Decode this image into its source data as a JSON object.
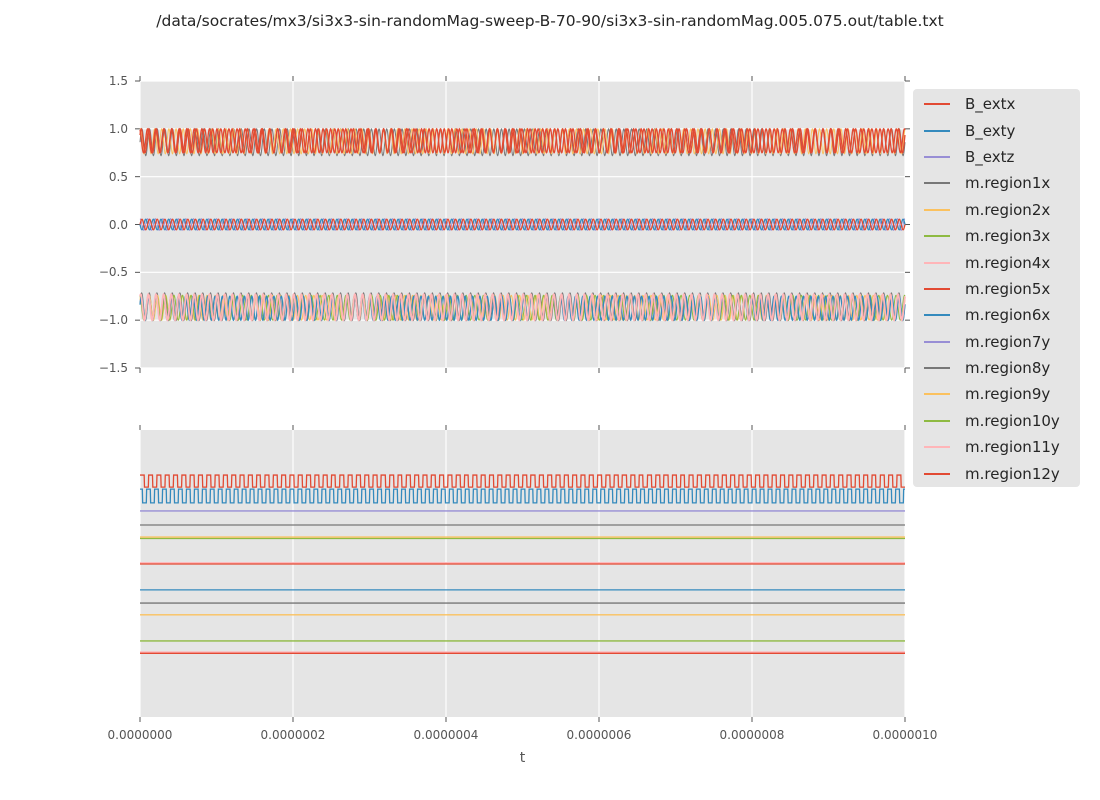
{
  "title": "/data/socrates/mx3/si3x3-sin-randomMag-sweep-B-70-90/si3x3-sin-randomMag.005.075.out/table.txt",
  "xlabel": "t",
  "style": {
    "figure_background": "#ffffff",
    "axes_background": "#E5E5E5",
    "grid_color": "#ffffff",
    "tick_color": "#555555",
    "text_color": "#262626",
    "palette": {
      "red": "#E24A33",
      "blue": "#348ABD",
      "purple": "#988ED5",
      "gray": "#777777",
      "orange": "#FBC15E",
      "green": "#8EBA42",
      "pink": "#FFB5B8"
    }
  },
  "legend": {
    "entries": [
      {
        "label": "B_extx",
        "color": "#E24A33"
      },
      {
        "label": "B_exty",
        "color": "#348ABD"
      },
      {
        "label": "B_extz",
        "color": "#988ED5"
      },
      {
        "label": "m.region1x",
        "color": "#777777"
      },
      {
        "label": "m.region2x",
        "color": "#FBC15E"
      },
      {
        "label": "m.region3x",
        "color": "#8EBA42"
      },
      {
        "label": "m.region4x",
        "color": "#FFB5B8"
      },
      {
        "label": "m.region5x",
        "color": "#E24A33"
      },
      {
        "label": "m.region6x",
        "color": "#348ABD"
      },
      {
        "label": "m.region7y",
        "color": "#988ED5"
      },
      {
        "label": "m.region8y",
        "color": "#777777"
      },
      {
        "label": "m.region9y",
        "color": "#FBC15E"
      },
      {
        "label": "m.region10y",
        "color": "#8EBA42"
      },
      {
        "label": "m.region11y",
        "color": "#FFB5B8"
      },
      {
        "label": "m.region12y",
        "color": "#E24A33"
      }
    ]
  },
  "chart_data": [
    {
      "id": "top",
      "type": "line",
      "xlim": [
        0,
        1e-06
      ],
      "ylim": [
        -1.5,
        1.5
      ],
      "grid": true,
      "xticks": [
        {
          "value": 0
        },
        {
          "value": 2e-07
        },
        {
          "value": 4e-07
        },
        {
          "value": 6e-07
        },
        {
          "value": 8e-07
        },
        {
          "value": 1e-06
        }
      ],
      "yticks": [
        {
          "value": 1.5,
          "label": "1.5"
        },
        {
          "value": 1.0,
          "label": "1.0"
        },
        {
          "value": 0.5,
          "label": "0.5"
        },
        {
          "value": 0.0,
          "label": "0.0"
        },
        {
          "value": -0.5,
          "label": "−0.5"
        },
        {
          "value": -1.0,
          "label": "−1.0"
        },
        {
          "value": -1.5,
          "label": "−1.5"
        }
      ],
      "series": [
        {
          "name": "upper-band-gray-underlay",
          "color": "#777777",
          "wave": "sine",
          "center": 0.86,
          "amplitude": 0.14,
          "cycles": 100,
          "phase": 0,
          "linewidth": 1
        },
        {
          "name": "upper-band-orange-texture",
          "color": "#FBC15E",
          "wave": "sine",
          "center": 0.87,
          "amplitude": 0.13,
          "cycles": 107,
          "phase": 1.3,
          "linewidth": 1
        },
        {
          "name": "upper-band-red-a",
          "color": "#E24A33",
          "wave": "sine",
          "center": 0.875,
          "amplitude": 0.125,
          "cycles": 94,
          "phase": 2.0,
          "linewidth": 1.3
        },
        {
          "name": "upper-band-red-b",
          "color": "#E24A33",
          "wave": "sine",
          "center": 0.875,
          "amplitude": 0.125,
          "cycles": 101,
          "phase": 0.5,
          "linewidth": 1.3
        },
        {
          "name": "mid-band-purple-underlay",
          "color": "#988ED5",
          "wave": "sine",
          "center": 0,
          "amplitude": 0.06,
          "cycles": 100,
          "phase": 1.6,
          "linewidth": 1
        },
        {
          "name": "mid-band-blue",
          "color": "#348ABD",
          "wave": "sine",
          "center": 0,
          "amplitude": 0.055,
          "cycles": 100,
          "phase": 3.14,
          "linewidth": 1.3
        },
        {
          "name": "mid-band-red",
          "color": "#E24A33",
          "wave": "sine",
          "center": 0,
          "amplitude": 0.055,
          "cycles": 100,
          "phase": 0,
          "linewidth": 1.3
        },
        {
          "name": "lower-band-gray-underlay",
          "color": "#777777",
          "wave": "sine",
          "center": -0.86,
          "amplitude": 0.145,
          "cycles": 100,
          "phase": 0.2,
          "linewidth": 1
        },
        {
          "name": "lower-band-orange-texture",
          "color": "#FBC15E",
          "wave": "sine",
          "center": -0.87,
          "amplitude": 0.13,
          "cycles": 93,
          "phase": 0.7,
          "linewidth": 1
        },
        {
          "name": "lower-band-green-texture",
          "color": "#8EBA42",
          "wave": "sine",
          "center": -0.87,
          "amplitude": 0.13,
          "cycles": 89,
          "phase": 1.9,
          "linewidth": 1
        },
        {
          "name": "lower-band-blue",
          "color": "#348ABD",
          "wave": "sine",
          "center": -0.875,
          "amplitude": 0.125,
          "cycles": 104,
          "phase": 0.3,
          "linewidth": 1.3
        },
        {
          "name": "lower-band-pink-main",
          "color": "#FFB5B8",
          "wave": "sine",
          "center": -0.865,
          "amplitude": 0.135,
          "cycles": 100,
          "phase": 1.0,
          "linewidth": 1.8
        }
      ]
    },
    {
      "id": "bottom",
      "type": "line",
      "xlim": [
        0,
        1e-06
      ],
      "ylim": [
        0,
        1
      ],
      "grid": true,
      "xticks": [
        {
          "value": 0,
          "label": "0.0000000"
        },
        {
          "value": 2e-07,
          "label": "0.0000002"
        },
        {
          "value": 4e-07,
          "label": "0.0000004"
        },
        {
          "value": 6e-07,
          "label": "0.0000006"
        },
        {
          "value": 8e-07,
          "label": "0.0000008"
        },
        {
          "value": 1e-06,
          "label": "0.0000010"
        }
      ],
      "yticks": [],
      "series": [
        {
          "name": "red-square-wave",
          "color": "#E24A33",
          "wave": "square",
          "high": 0.843,
          "low": 0.801,
          "cycles": 92,
          "phase": 0,
          "linewidth": 1.3
        },
        {
          "name": "blue-square-wave",
          "color": "#348ABD",
          "wave": "square",
          "high": 0.794,
          "low": 0.746,
          "cycles": 96,
          "phase": 1.2,
          "linewidth": 1.3
        },
        {
          "name": "purple-flat-line",
          "color": "#988ED5",
          "wave": "flat",
          "level": 0.718,
          "linewidth": 1.3
        },
        {
          "name": "gray-flat-line-1",
          "color": "#777777",
          "wave": "flat",
          "level": 0.669,
          "linewidth": 1.3
        },
        {
          "name": "orange-flat-line-1",
          "color": "#FBC15E",
          "wave": "flat",
          "level": 0.627,
          "linewidth": 1.3
        },
        {
          "name": "green-flat-line-1",
          "color": "#8EBA42",
          "wave": "flat",
          "level": 0.622,
          "linewidth": 1.3
        },
        {
          "name": "pink-flat-line-1",
          "color": "#FFB5B8",
          "wave": "flat",
          "level": 0.537,
          "linewidth": 1.6
        },
        {
          "name": "red-flat-line-1",
          "color": "#E24A33",
          "wave": "flat",
          "level": 0.533,
          "linewidth": 1.3
        },
        {
          "name": "blue-flat-line",
          "color": "#348ABD",
          "wave": "flat",
          "level": 0.443,
          "linewidth": 1.3
        },
        {
          "name": "gray-flat-line-2",
          "color": "#777777",
          "wave": "flat",
          "level": 0.397,
          "linewidth": 1.3
        },
        {
          "name": "orange-flat-line-2",
          "color": "#FBC15E",
          "wave": "flat",
          "level": 0.356,
          "linewidth": 1.3
        },
        {
          "name": "green-flat-line-2",
          "color": "#8EBA42",
          "wave": "flat",
          "level": 0.265,
          "linewidth": 1.3
        },
        {
          "name": "pink-flat-line-2",
          "color": "#FFB5B8",
          "wave": "flat",
          "level": 0.226,
          "linewidth": 1.6
        },
        {
          "name": "red-flat-line-2",
          "color": "#E24A33",
          "wave": "flat",
          "level": 0.222,
          "linewidth": 1.3
        }
      ]
    }
  ]
}
